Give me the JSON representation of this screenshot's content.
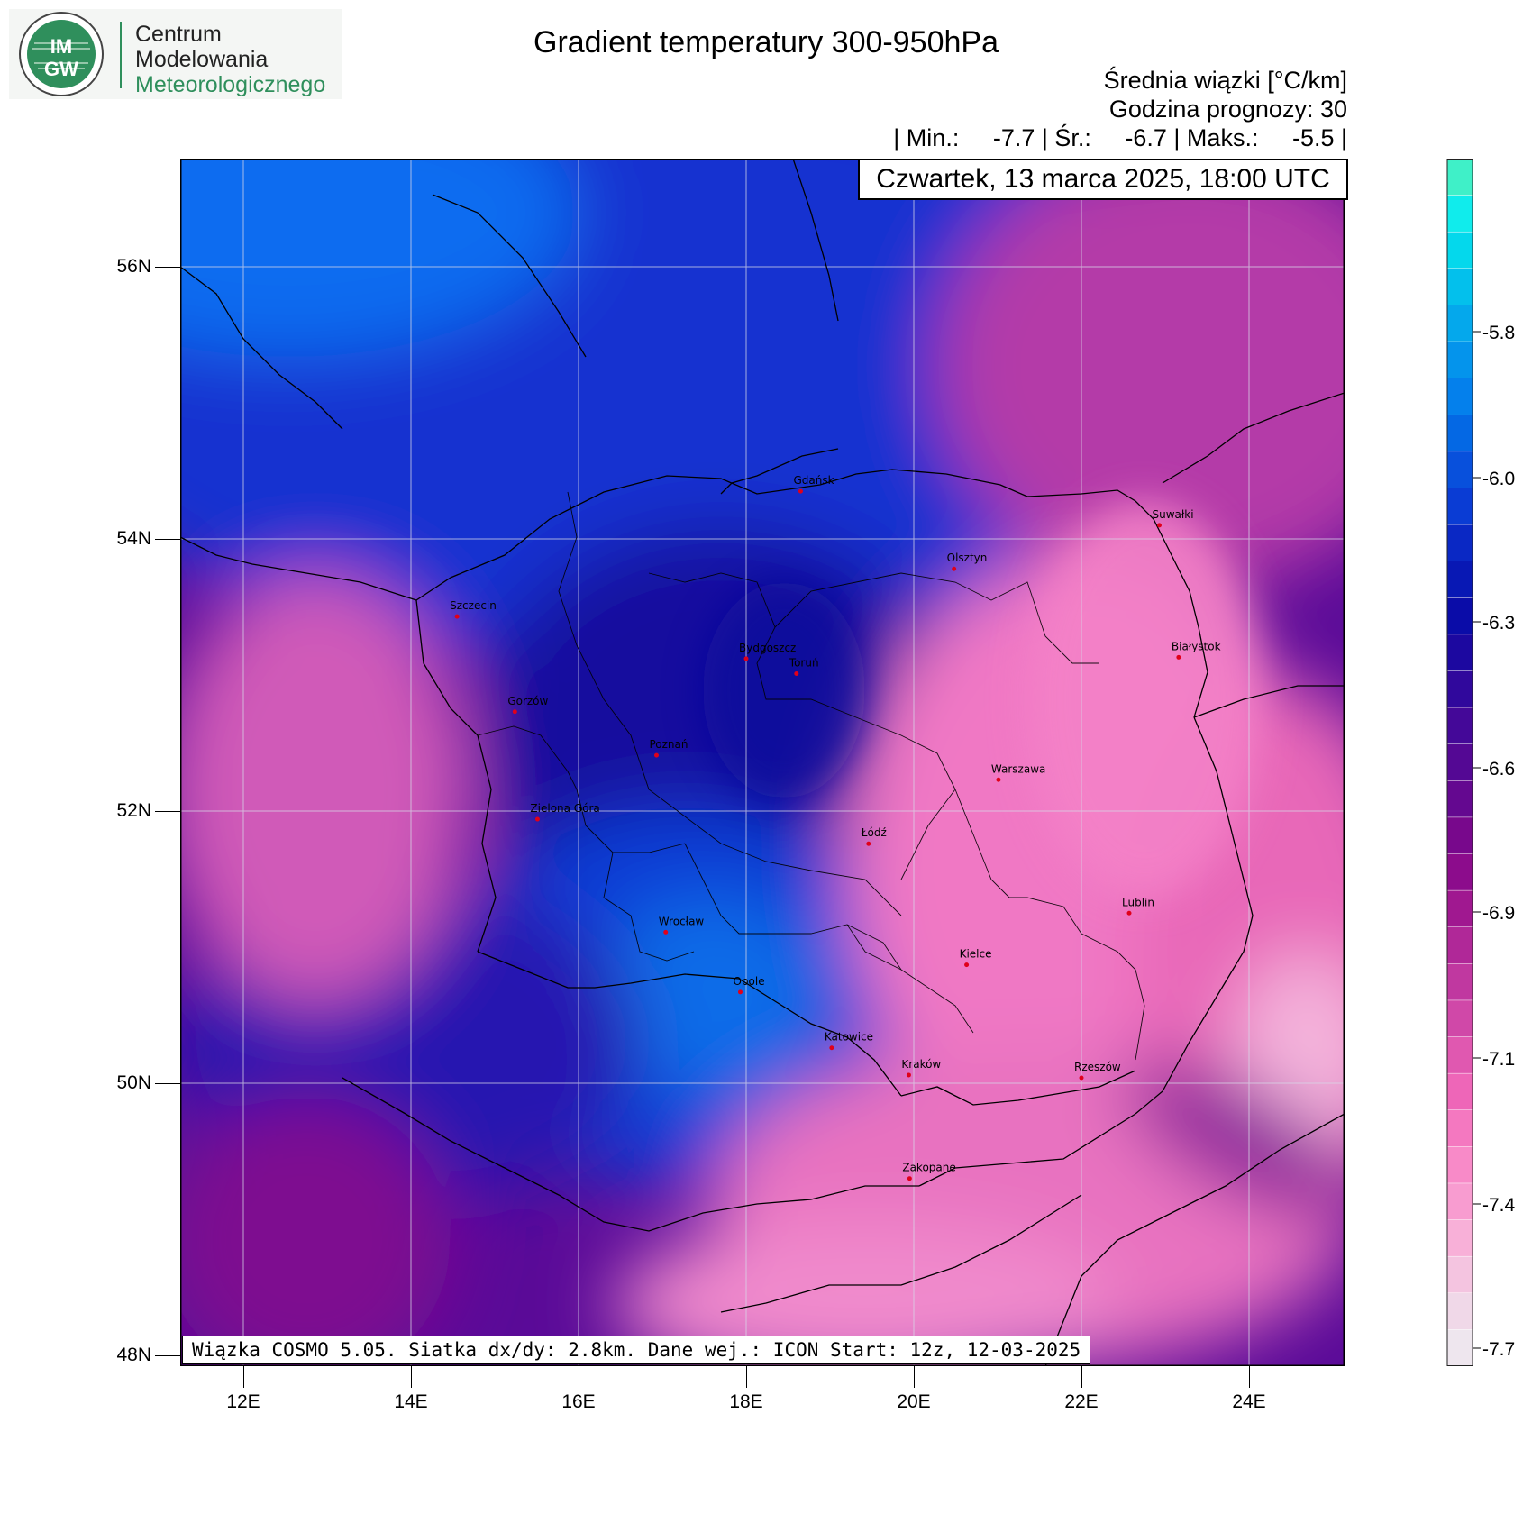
{
  "logo": {
    "abbrev_top": "IM",
    "abbrev_bottom": "GW",
    "line1": "Centrum",
    "line2": "Modelowania",
    "line3": "Meteorologicznego"
  },
  "header": {
    "title": "Gradient temperatury 300-950hPa",
    "unit_line": "Średnia wiązki [°C/km]",
    "forecast_hour": "Godzina prognozy: 30",
    "stats": "| Min.:     -7.7 | Śr.:     -6.7 | Maks.:     -5.5 |",
    "date": "Czwartek, 13 marca 2025, 18:00 UTC"
  },
  "footer": "Wiązka COSMO 5.05. Siatka dx/dy: 2.8km. Dane wej.: ICON Start: 12z, 12-03-2025",
  "map": {
    "lat_labels": [
      "56N",
      "54N",
      "52N",
      "50N",
      "48N"
    ],
    "lon_labels": [
      "12E",
      "14E",
      "16E",
      "18E",
      "20E",
      "22E",
      "24E"
    ],
    "cities": [
      {
        "name": "Gdańsk",
        "lon": 18.65,
        "lat": 54.35
      },
      {
        "name": "Olsztyn",
        "lon": 20.48,
        "lat": 53.78
      },
      {
        "name": "Suwałki",
        "lon": 22.93,
        "lat": 54.1
      },
      {
        "name": "Białystok",
        "lon": 23.16,
        "lat": 53.13
      },
      {
        "name": "Szczecin",
        "lon": 14.55,
        "lat": 53.43
      },
      {
        "name": "Bydgoszcz",
        "lon": 18.0,
        "lat": 53.12
      },
      {
        "name": "Toruń",
        "lon": 18.6,
        "lat": 53.01
      },
      {
        "name": "Gorzów",
        "lon": 15.24,
        "lat": 52.73
      },
      {
        "name": "Poznań",
        "lon": 16.93,
        "lat": 52.41
      },
      {
        "name": "Warszawa",
        "lon": 21.01,
        "lat": 52.23
      },
      {
        "name": "Zielona Góra",
        "lon": 15.51,
        "lat": 51.94
      },
      {
        "name": "Łódź",
        "lon": 19.46,
        "lat": 51.76
      },
      {
        "name": "Lublin",
        "lon": 22.57,
        "lat": 51.25
      },
      {
        "name": "Wrocław",
        "lon": 17.04,
        "lat": 51.11
      },
      {
        "name": "Kielce",
        "lon": 20.63,
        "lat": 50.87
      },
      {
        "name": "Opole",
        "lon": 17.93,
        "lat": 50.67
      },
      {
        "name": "Rzeszów",
        "lon": 22.0,
        "lat": 50.04
      },
      {
        "name": "Katowice",
        "lon": 19.02,
        "lat": 50.26
      },
      {
        "name": "Kraków",
        "lon": 19.94,
        "lat": 50.06
      },
      {
        "name": "Zakopane",
        "lon": 19.95,
        "lat": 49.3
      }
    ],
    "city_color": "#e0001a"
  },
  "colorbar": {
    "tick_labels": [
      "-5.8",
      "-6.0",
      "-6.3",
      "-6.6",
      "-6.9",
      "-7.1",
      "-7.4",
      "-7.7"
    ],
    "colors": [
      "#3ff0c8",
      "#10ecec",
      "#04d8ec",
      "#03c0ec",
      "#04a8ec",
      "#0494ec",
      "#0480ec",
      "#0468e4",
      "#0850dc",
      "#0a3cd4",
      "#0a28c4",
      "#0818b4",
      "#0a0ca8",
      "#1c08a0",
      "#30089c",
      "#440898",
      "#540894",
      "#640890",
      "#78088c",
      "#8c0c8c",
      "#a01890",
      "#b02898",
      "#c038a0",
      "#d048a8",
      "#e058b0",
      "#ee66b8",
      "#f478c0",
      "#f88ac8",
      "#f89cd0",
      "#f8b0d8",
      "#f4c4e0",
      "#f0d8e8",
      "#eee6ee"
    ]
  }
}
